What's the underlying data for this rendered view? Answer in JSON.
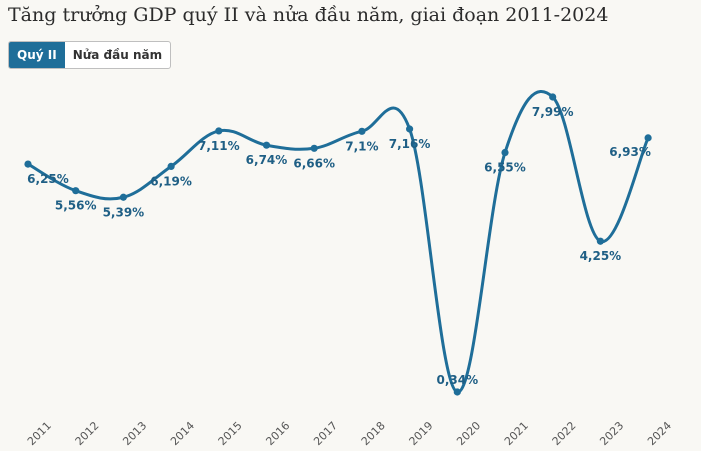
{
  "title": "Tăng trưởng GDP quý II và nửa đầu năm, giai đoạn 2011-2024",
  "tabs": [
    {
      "label": "Quý II",
      "active": true
    },
    {
      "label": "Nửa đầu năm",
      "active": false
    }
  ],
  "colors": {
    "line": "#1f6e99",
    "label": "#1f5f85",
    "active_tab": "#1f6e99"
  },
  "chart_data": {
    "type": "line",
    "title": "Tăng trưởng GDP quý II và nửa đầu năm, giai đoạn 2011-2024",
    "categories": [
      "2011",
      "2012",
      "2013",
      "2014",
      "2015",
      "2016",
      "2017",
      "2018",
      "2019",
      "2020",
      "2021",
      "2022",
      "2023",
      "2024"
    ],
    "series": [
      {
        "values": [
          6.25,
          5.56,
          5.39,
          6.19,
          7.11,
          6.74,
          6.66,
          7.1,
          7.16,
          0.34,
          6.55,
          7.99,
          4.25,
          6.93
        ],
        "labels": [
          "6,25%",
          "5,56%",
          "5,39%",
          "6,19%",
          "7,11%",
          "6,74%",
          "6,66%",
          "7,1%",
          "7,16%",
          "0,34%",
          "6,55%",
          "7,99%",
          "4,25%",
          "6,93%"
        ]
      }
    ],
    "xlabel": "",
    "ylabel": "",
    "ylim": [
      0,
      8.3
    ],
    "grid": false,
    "legend": "none"
  }
}
